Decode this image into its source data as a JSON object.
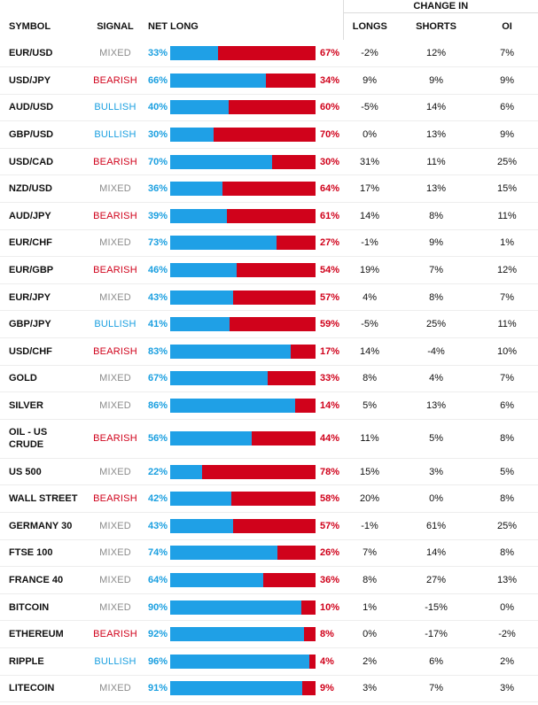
{
  "colors": {
    "long": "#1fa0e6",
    "short": "#d0021b",
    "bullish": "#1a9fe0",
    "bearish": "#d0021b",
    "mixed": "#8c8c8c"
  },
  "headers": {
    "change_in": "CHANGE IN",
    "symbol": "SYMBOL",
    "signal": "SIGNAL",
    "net_long": "NET LONG",
    "net_short": "NET SHORT",
    "longs": "LONGS",
    "shorts": "SHORTS",
    "oi": "OI"
  },
  "chart_data": {
    "type": "table",
    "columns": [
      "SYMBOL",
      "SIGNAL",
      "NET LONG",
      "NET SHORT",
      "LONGS",
      "SHORTS",
      "OI"
    ],
    "rows": [
      {
        "symbol": "EUR/USD",
        "signal": "MIXED",
        "net_long": 33,
        "net_short": 67,
        "longs": "-2%",
        "shorts": "12%",
        "oi": "7%"
      },
      {
        "symbol": "USD/JPY",
        "signal": "BEARISH",
        "net_long": 66,
        "net_short": 34,
        "longs": "9%",
        "shorts": "9%",
        "oi": "9%"
      },
      {
        "symbol": "AUD/USD",
        "signal": "BULLISH",
        "net_long": 40,
        "net_short": 60,
        "longs": "-5%",
        "shorts": "14%",
        "oi": "6%"
      },
      {
        "symbol": "GBP/USD",
        "signal": "BULLISH",
        "net_long": 30,
        "net_short": 70,
        "longs": "0%",
        "shorts": "13%",
        "oi": "9%"
      },
      {
        "symbol": "USD/CAD",
        "signal": "BEARISH",
        "net_long": 70,
        "net_short": 30,
        "longs": "31%",
        "shorts": "11%",
        "oi": "25%"
      },
      {
        "symbol": "NZD/USD",
        "signal": "MIXED",
        "net_long": 36,
        "net_short": 64,
        "longs": "17%",
        "shorts": "13%",
        "oi": "15%"
      },
      {
        "symbol": "AUD/JPY",
        "signal": "BEARISH",
        "net_long": 39,
        "net_short": 61,
        "longs": "14%",
        "shorts": "8%",
        "oi": "11%"
      },
      {
        "symbol": "EUR/CHF",
        "signal": "MIXED",
        "net_long": 73,
        "net_short": 27,
        "longs": "-1%",
        "shorts": "9%",
        "oi": "1%"
      },
      {
        "symbol": "EUR/GBP",
        "signal": "BEARISH",
        "net_long": 46,
        "net_short": 54,
        "longs": "19%",
        "shorts": "7%",
        "oi": "12%"
      },
      {
        "symbol": "EUR/JPY",
        "signal": "MIXED",
        "net_long": 43,
        "net_short": 57,
        "longs": "4%",
        "shorts": "8%",
        "oi": "7%"
      },
      {
        "symbol": "GBP/JPY",
        "signal": "BULLISH",
        "net_long": 41,
        "net_short": 59,
        "longs": "-5%",
        "shorts": "25%",
        "oi": "11%"
      },
      {
        "symbol": "USD/CHF",
        "signal": "BEARISH",
        "net_long": 83,
        "net_short": 17,
        "longs": "14%",
        "shorts": "-4%",
        "oi": "10%"
      },
      {
        "symbol": "GOLD",
        "signal": "MIXED",
        "net_long": 67,
        "net_short": 33,
        "longs": "8%",
        "shorts": "4%",
        "oi": "7%"
      },
      {
        "symbol": "SILVER",
        "signal": "MIXED",
        "net_long": 86,
        "net_short": 14,
        "longs": "5%",
        "shorts": "13%",
        "oi": "6%"
      },
      {
        "symbol": "OIL - US CRUDE",
        "signal": "BEARISH",
        "net_long": 56,
        "net_short": 44,
        "longs": "11%",
        "shorts": "5%",
        "oi": "8%"
      },
      {
        "symbol": "US 500",
        "signal": "MIXED",
        "net_long": 22,
        "net_short": 78,
        "longs": "15%",
        "shorts": "3%",
        "oi": "5%"
      },
      {
        "symbol": "WALL STREET",
        "signal": "BEARISH",
        "net_long": 42,
        "net_short": 58,
        "longs": "20%",
        "shorts": "0%",
        "oi": "8%"
      },
      {
        "symbol": "GERMANY 30",
        "signal": "MIXED",
        "net_long": 43,
        "net_short": 57,
        "longs": "-1%",
        "shorts": "61%",
        "oi": "25%"
      },
      {
        "symbol": "FTSE 100",
        "signal": "MIXED",
        "net_long": 74,
        "net_short": 26,
        "longs": "7%",
        "shorts": "14%",
        "oi": "8%"
      },
      {
        "symbol": "FRANCE 40",
        "signal": "MIXED",
        "net_long": 64,
        "net_short": 36,
        "longs": "8%",
        "shorts": "27%",
        "oi": "13%"
      },
      {
        "symbol": "BITCOIN",
        "signal": "MIXED",
        "net_long": 90,
        "net_short": 10,
        "longs": "1%",
        "shorts": "-15%",
        "oi": "0%"
      },
      {
        "symbol": "ETHEREUM",
        "signal": "BEARISH",
        "net_long": 92,
        "net_short": 8,
        "longs": "0%",
        "shorts": "-17%",
        "oi": "-2%"
      },
      {
        "symbol": "RIPPLE",
        "signal": "BULLISH",
        "net_long": 96,
        "net_short": 4,
        "longs": "2%",
        "shorts": "6%",
        "oi": "2%"
      },
      {
        "symbol": "LITECOIN",
        "signal": "MIXED",
        "net_long": 91,
        "net_short": 9,
        "longs": "3%",
        "shorts": "7%",
        "oi": "3%"
      }
    ]
  }
}
